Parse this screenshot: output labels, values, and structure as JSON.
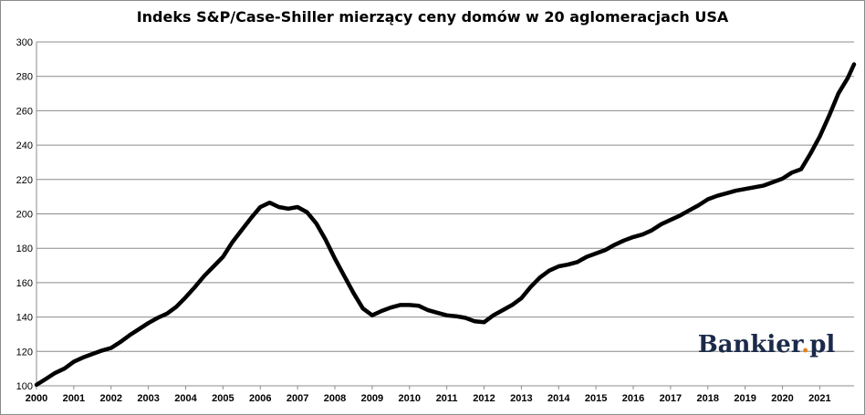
{
  "chart_data": {
    "type": "line",
    "title": "Indeks S&P/Case-Shiller mierzący ceny domów w 20 aglomeracjach USA",
    "xlabel": "",
    "ylabel": "",
    "ylim": [
      100,
      300
    ],
    "yticks": [
      100,
      120,
      140,
      160,
      180,
      200,
      220,
      240,
      260,
      280,
      300
    ],
    "xlim": [
      2000,
      2021.92
    ],
    "xticks": [
      "2000",
      "2001",
      "2002",
      "2003",
      "2004",
      "2005",
      "2006",
      "2007",
      "2008",
      "2009",
      "2010",
      "2011",
      "2012",
      "2013",
      "2014",
      "2015",
      "2016",
      "2017",
      "2018",
      "2019",
      "2020",
      "2021"
    ],
    "grid": true,
    "legend": "none",
    "series": [
      {
        "color": "#000000",
        "x": [
          2000.0,
          2000.25,
          2000.5,
          2000.75,
          2001.0,
          2001.25,
          2001.5,
          2001.75,
          2002.0,
          2002.25,
          2002.5,
          2002.75,
          2003.0,
          2003.25,
          2003.5,
          2003.75,
          2004.0,
          2004.25,
          2004.5,
          2004.75,
          2005.0,
          2005.25,
          2005.5,
          2005.75,
          2006.0,
          2006.25,
          2006.5,
          2006.75,
          2007.0,
          2007.25,
          2007.5,
          2007.75,
          2008.0,
          2008.25,
          2008.5,
          2008.75,
          2009.0,
          2009.25,
          2009.5,
          2009.75,
          2010.0,
          2010.25,
          2010.5,
          2010.75,
          2011.0,
          2011.25,
          2011.5,
          2011.75,
          2012.0,
          2012.25,
          2012.5,
          2012.75,
          2013.0,
          2013.25,
          2013.5,
          2013.75,
          2014.0,
          2014.25,
          2014.5,
          2014.75,
          2015.0,
          2015.25,
          2015.5,
          2015.75,
          2016.0,
          2016.25,
          2016.5,
          2016.75,
          2017.0,
          2017.25,
          2017.5,
          2017.75,
          2018.0,
          2018.25,
          2018.5,
          2018.75,
          2019.0,
          2019.25,
          2019.5,
          2019.75,
          2020.0,
          2020.25,
          2020.5,
          2020.75,
          2021.0,
          2021.25,
          2021.5,
          2021.75,
          2021.92
        ],
        "y": [
          100.6,
          104.0,
          107.5,
          110.0,
          114.0,
          116.5,
          118.5,
          120.5,
          122.0,
          125.5,
          129.5,
          133.0,
          136.5,
          139.5,
          142.0,
          146.0,
          151.5,
          157.5,
          164.0,
          169.5,
          175.0,
          183.5,
          190.5,
          197.5,
          204.0,
          206.5,
          204.0,
          203.0,
          204.0,
          201.0,
          194.5,
          185.0,
          174.0,
          164.0,
          154.0,
          145.0,
          141.0,
          143.5,
          145.5,
          147.0,
          147.0,
          146.5,
          144.0,
          142.5,
          141.0,
          140.5,
          139.5,
          137.5,
          137.0,
          141.0,
          144.0,
          147.0,
          151.0,
          157.5,
          163.0,
          167.0,
          169.5,
          170.5,
          172.0,
          175.0,
          177.0,
          179.0,
          182.0,
          184.5,
          186.5,
          188.0,
          190.5,
          194.0,
          196.5,
          199.0,
          202.0,
          205.0,
          208.5,
          210.5,
          212.0,
          213.5,
          214.5,
          215.5,
          216.5,
          218.5,
          220.5,
          224.0,
          226.0,
          235.0,
          245.0,
          257.0,
          270.0,
          279.0,
          287.0
        ]
      }
    ]
  },
  "watermark": {
    "text_main": "Bankier",
    "text_dot": ".",
    "text_tld": "pl",
    "dot_color": "#e0841a",
    "text_color": "#1b2a4a"
  }
}
